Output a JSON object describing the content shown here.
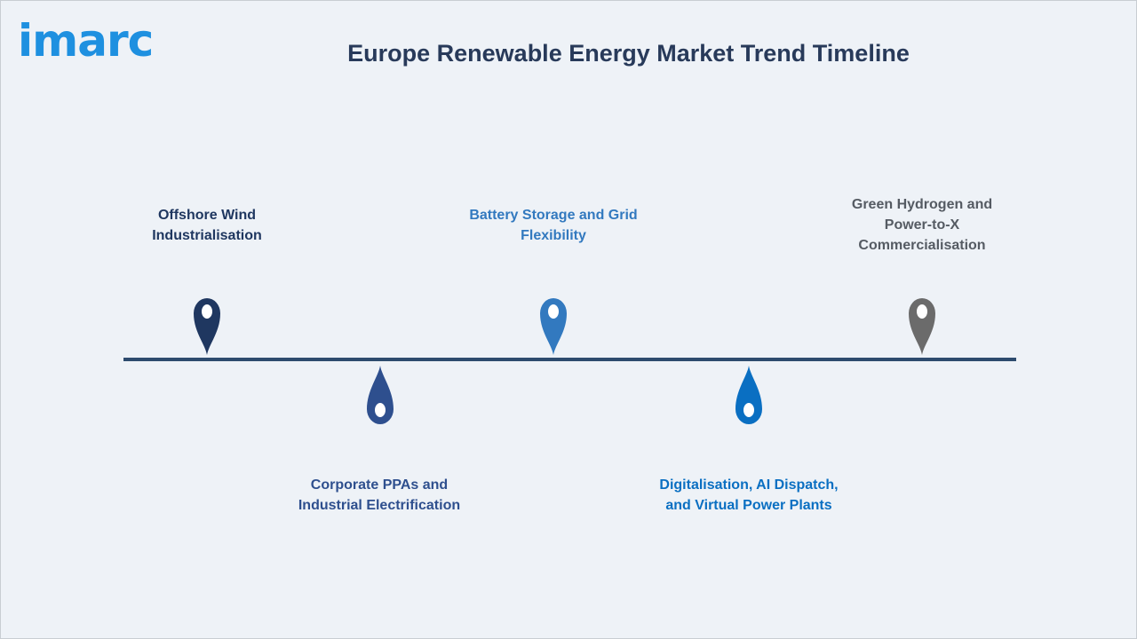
{
  "logo": {
    "text": "imarc"
  },
  "title": "Europe Renewable Energy Market Trend Timeline",
  "timeline": {
    "items": [
      {
        "label_line1": "Offshore Wind",
        "label_line2": "Industrialisation",
        "label_line3": "",
        "position": "above",
        "color": "#1f3760"
      },
      {
        "label_line1": "Corporate PPAs and",
        "label_line2": "Industrial Electrification",
        "label_line3": "",
        "position": "below",
        "color": "#2e4f8e"
      },
      {
        "label_line1": "Battery Storage and Grid",
        "label_line2": "Flexibility",
        "label_line3": "",
        "position": "above",
        "color": "#3279bf"
      },
      {
        "label_line1": "Digitalisation, AI Dispatch,",
        "label_line2": "and Virtual Power Plants",
        "label_line3": "",
        "position": "below",
        "color": "#0a6fc2"
      },
      {
        "label_line1": "Green Hydrogen and",
        "label_line2": "Power-to-X",
        "label_line3": "Commercialisation",
        "position": "above",
        "color": "#6b6b6b"
      }
    ]
  }
}
